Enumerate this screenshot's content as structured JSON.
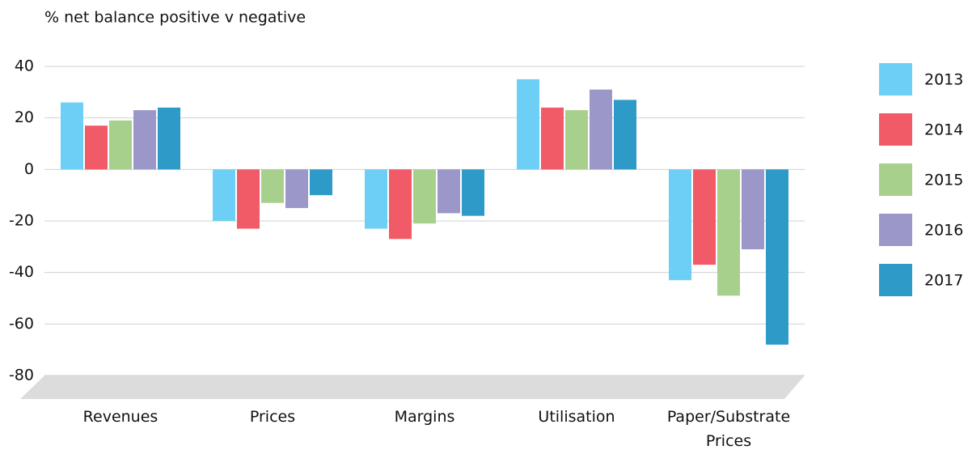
{
  "chart_data": {
    "type": "bar",
    "title": "% net balance positive v negative",
    "categories": [
      "Revenues",
      "Prices",
      "Margins",
      "Utilisation",
      "Paper/Substrate Prices"
    ],
    "series": [
      {
        "name": "2013",
        "color": "#6dcff6",
        "values": [
          26,
          -20,
          -23,
          35,
          -43
        ]
      },
      {
        "name": "2014",
        "color": "#f15a67",
        "values": [
          17,
          -23,
          -27,
          24,
          -37
        ]
      },
      {
        "name": "2015",
        "color": "#a8d08d",
        "values": [
          19,
          -13,
          -21,
          23,
          -49
        ]
      },
      {
        "name": "2016",
        "color": "#9b97c8",
        "values": [
          23,
          -15,
          -17,
          31,
          -31
        ]
      },
      {
        "name": "2017",
        "color": "#2e9ac8",
        "values": [
          24,
          -10,
          -18,
          27,
          -68
        ]
      }
    ],
    "ylim": [
      -80,
      40
    ],
    "yticks": [
      -80,
      -60,
      -40,
      -20,
      0,
      20,
      40
    ],
    "grid": true,
    "legend": "right"
  }
}
